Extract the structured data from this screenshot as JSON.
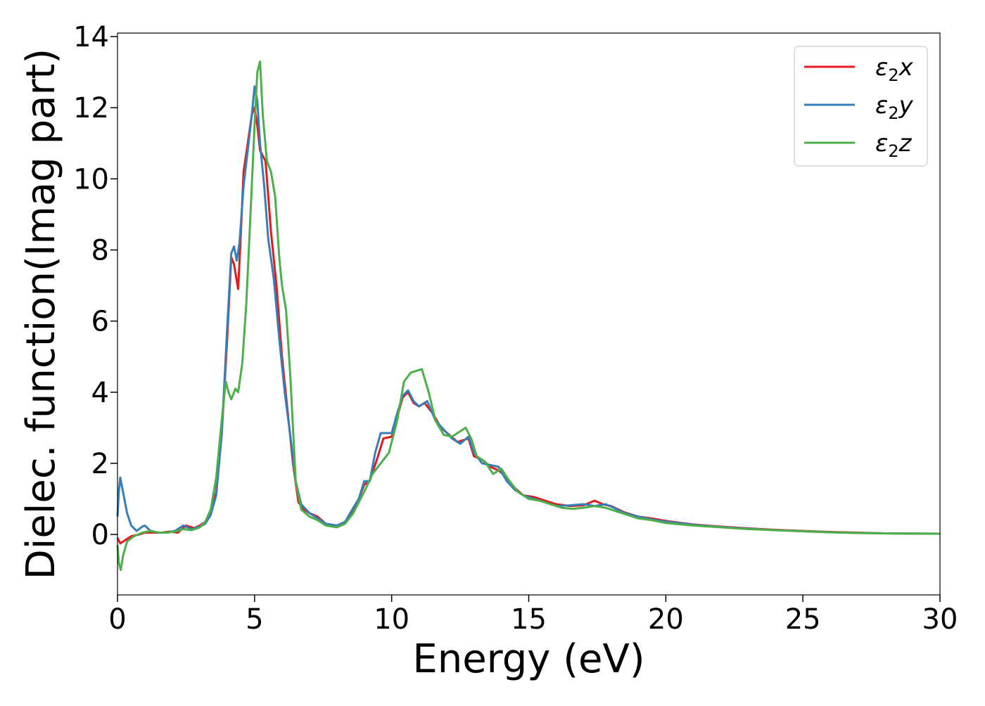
{
  "chart_data": {
    "type": "line",
    "title": "",
    "xlabel": "Energy (eV)",
    "ylabel": "Dielec. function(Imag part)",
    "xlim": [
      0,
      30
    ],
    "ylim": [
      -1.7,
      14.1
    ],
    "xticks": [
      0,
      5,
      10,
      15,
      20,
      25,
      30
    ],
    "yticks": [
      0,
      2,
      4,
      6,
      8,
      10,
      12,
      14
    ],
    "grid": false,
    "legend_position": "top-right",
    "series": [
      {
        "name": "ε₂x",
        "legend_base": "ε",
        "legend_sub": "2",
        "legend_suffix": "x",
        "color": "#e41a1c",
        "points": [
          [
            0,
            -0.1
          ],
          [
            0.1,
            -0.25
          ],
          [
            0.3,
            -0.15
          ],
          [
            0.5,
            -0.05
          ],
          [
            0.8,
            0.0
          ],
          [
            1.0,
            0.05
          ],
          [
            1.3,
            0.05
          ],
          [
            1.6,
            0.05
          ],
          [
            1.9,
            0.08
          ],
          [
            2.2,
            0.05
          ],
          [
            2.5,
            0.25
          ],
          [
            2.8,
            0.18
          ],
          [
            3.0,
            0.25
          ],
          [
            3.2,
            0.35
          ],
          [
            3.4,
            0.6
          ],
          [
            3.6,
            1.2
          ],
          [
            3.8,
            2.8
          ],
          [
            4.0,
            5.5
          ],
          [
            4.15,
            7.8
          ],
          [
            4.25,
            7.6
          ],
          [
            4.4,
            6.9
          ],
          [
            4.5,
            8.5
          ],
          [
            4.6,
            10.2
          ],
          [
            4.75,
            11.0
          ],
          [
            4.9,
            11.8
          ],
          [
            5.0,
            12.0
          ],
          [
            5.1,
            11.5
          ],
          [
            5.2,
            10.8
          ],
          [
            5.4,
            10.5
          ],
          [
            5.6,
            8.5
          ],
          [
            5.8,
            7.0
          ],
          [
            6.0,
            5.0
          ],
          [
            6.2,
            3.5
          ],
          [
            6.4,
            2.0
          ],
          [
            6.6,
            0.9
          ],
          [
            6.8,
            0.7
          ],
          [
            7.0,
            0.6
          ],
          [
            7.3,
            0.5
          ],
          [
            7.6,
            0.3
          ],
          [
            8.0,
            0.25
          ],
          [
            8.3,
            0.35
          ],
          [
            8.6,
            0.7
          ],
          [
            8.8,
            1.0
          ],
          [
            9.0,
            1.4
          ],
          [
            9.2,
            1.5
          ],
          [
            9.5,
            2.2
          ],
          [
            9.7,
            2.7
          ],
          [
            10.0,
            2.75
          ],
          [
            10.2,
            3.3
          ],
          [
            10.4,
            3.85
          ],
          [
            10.6,
            4.0
          ],
          [
            10.8,
            3.7
          ],
          [
            11.0,
            3.6
          ],
          [
            11.2,
            3.7
          ],
          [
            11.5,
            3.4
          ],
          [
            11.8,
            3.0
          ],
          [
            12.1,
            2.8
          ],
          [
            12.4,
            2.6
          ],
          [
            12.8,
            2.7
          ],
          [
            13.0,
            2.2
          ],
          [
            13.3,
            2.1
          ],
          [
            13.6,
            1.9
          ],
          [
            13.9,
            1.8
          ],
          [
            14.2,
            1.6
          ],
          [
            14.5,
            1.3
          ],
          [
            14.8,
            1.1
          ],
          [
            15.2,
            1.05
          ],
          [
            15.6,
            0.95
          ],
          [
            16.0,
            0.85
          ],
          [
            16.5,
            0.8
          ],
          [
            17.0,
            0.82
          ],
          [
            17.4,
            0.95
          ],
          [
            17.7,
            0.85
          ],
          [
            18.0,
            0.8
          ],
          [
            18.5,
            0.62
          ],
          [
            19.0,
            0.5
          ],
          [
            19.5,
            0.45
          ],
          [
            20.0,
            0.38
          ],
          [
            21.0,
            0.28
          ],
          [
            22.0,
            0.22
          ],
          [
            23.0,
            0.17
          ],
          [
            24.0,
            0.13
          ],
          [
            25.0,
            0.1
          ],
          [
            26.0,
            0.07
          ],
          [
            27.0,
            0.05
          ],
          [
            28.0,
            0.03
          ],
          [
            30.0,
            0.02
          ]
        ]
      },
      {
        "name": "ε₂y",
        "legend_base": "ε",
        "legend_sub": "2",
        "legend_suffix": "y",
        "color": "#377eb8",
        "points": [
          [
            0,
            0.5
          ],
          [
            0.05,
            1.2
          ],
          [
            0.1,
            1.6
          ],
          [
            0.2,
            1.2
          ],
          [
            0.35,
            0.6
          ],
          [
            0.5,
            0.25
          ],
          [
            0.7,
            0.1
          ],
          [
            0.9,
            0.22
          ],
          [
            1.0,
            0.25
          ],
          [
            1.2,
            0.1
          ],
          [
            1.5,
            0.05
          ],
          [
            1.8,
            0.05
          ],
          [
            2.1,
            0.1
          ],
          [
            2.4,
            0.25
          ],
          [
            2.7,
            0.15
          ],
          [
            3.0,
            0.22
          ],
          [
            3.2,
            0.3
          ],
          [
            3.4,
            0.55
          ],
          [
            3.6,
            1.1
          ],
          [
            3.8,
            2.8
          ],
          [
            4.0,
            5.8
          ],
          [
            4.15,
            7.9
          ],
          [
            4.25,
            8.1
          ],
          [
            4.35,
            7.7
          ],
          [
            4.45,
            8.2
          ],
          [
            4.6,
            9.8
          ],
          [
            4.75,
            10.8
          ],
          [
            4.9,
            11.8
          ],
          [
            5.0,
            12.6
          ],
          [
            5.1,
            12.2
          ],
          [
            5.2,
            11.0
          ],
          [
            5.35,
            9.8
          ],
          [
            5.5,
            8.3
          ],
          [
            5.7,
            7.2
          ],
          [
            5.9,
            5.5
          ],
          [
            6.1,
            4.0
          ],
          [
            6.3,
            2.8
          ],
          [
            6.5,
            1.5
          ],
          [
            6.7,
            0.85
          ],
          [
            7.0,
            0.6
          ],
          [
            7.3,
            0.45
          ],
          [
            7.6,
            0.3
          ],
          [
            8.0,
            0.25
          ],
          [
            8.3,
            0.35
          ],
          [
            8.6,
            0.75
          ],
          [
            8.8,
            1.0
          ],
          [
            9.0,
            1.5
          ],
          [
            9.2,
            1.5
          ],
          [
            9.4,
            2.3
          ],
          [
            9.6,
            2.85
          ],
          [
            10.0,
            2.85
          ],
          [
            10.2,
            3.4
          ],
          [
            10.4,
            3.9
          ],
          [
            10.6,
            4.05
          ],
          [
            10.8,
            3.75
          ],
          [
            11.0,
            3.6
          ],
          [
            11.3,
            3.75
          ],
          [
            11.6,
            3.2
          ],
          [
            11.9,
            2.95
          ],
          [
            12.2,
            2.7
          ],
          [
            12.5,
            2.55
          ],
          [
            12.8,
            2.75
          ],
          [
            13.0,
            2.3
          ],
          [
            13.3,
            2.0
          ],
          [
            13.6,
            1.95
          ],
          [
            13.9,
            1.9
          ],
          [
            14.2,
            1.5
          ],
          [
            14.5,
            1.25
          ],
          [
            14.8,
            1.1
          ],
          [
            15.2,
            1.0
          ],
          [
            15.6,
            0.9
          ],
          [
            16.0,
            0.8
          ],
          [
            16.5,
            0.82
          ],
          [
            17.0,
            0.85
          ],
          [
            17.4,
            0.8
          ],
          [
            17.8,
            0.85
          ],
          [
            18.1,
            0.75
          ],
          [
            18.5,
            0.6
          ],
          [
            19.0,
            0.5
          ],
          [
            19.5,
            0.42
          ],
          [
            20.0,
            0.36
          ],
          [
            21.0,
            0.27
          ],
          [
            22.0,
            0.21
          ],
          [
            23.0,
            0.16
          ],
          [
            24.0,
            0.12
          ],
          [
            25.0,
            0.09
          ],
          [
            26.0,
            0.06
          ],
          [
            27.0,
            0.04
          ],
          [
            28.0,
            0.03
          ],
          [
            30.0,
            0.02
          ]
        ]
      },
      {
        "name": "ε₂z",
        "legend_base": "ε",
        "legend_sub": "2",
        "legend_suffix": "z",
        "color": "#4daf4a",
        "points": [
          [
            0,
            -0.3
          ],
          [
            0.05,
            -0.8
          ],
          [
            0.12,
            -1.0
          ],
          [
            0.2,
            -0.6
          ],
          [
            0.35,
            -0.2
          ],
          [
            0.6,
            -0.05
          ],
          [
            0.9,
            0.05
          ],
          [
            1.2,
            0.1
          ],
          [
            1.5,
            0.05
          ],
          [
            1.8,
            0.05
          ],
          [
            2.1,
            0.08
          ],
          [
            2.4,
            0.15
          ],
          [
            2.7,
            0.12
          ],
          [
            3.0,
            0.2
          ],
          [
            3.2,
            0.35
          ],
          [
            3.4,
            0.7
          ],
          [
            3.6,
            1.6
          ],
          [
            3.8,
            3.2
          ],
          [
            3.95,
            4.3
          ],
          [
            4.05,
            4.0
          ],
          [
            4.15,
            3.8
          ],
          [
            4.3,
            4.1
          ],
          [
            4.4,
            4.0
          ],
          [
            4.55,
            4.8
          ],
          [
            4.7,
            6.5
          ],
          [
            4.85,
            9.0
          ],
          [
            5.0,
            11.5
          ],
          [
            5.1,
            13.0
          ],
          [
            5.2,
            13.3
          ],
          [
            5.3,
            11.8
          ],
          [
            5.45,
            10.5
          ],
          [
            5.6,
            10.2
          ],
          [
            5.75,
            9.5
          ],
          [
            5.9,
            7.8
          ],
          [
            6.0,
            7.0
          ],
          [
            6.15,
            6.3
          ],
          [
            6.3,
            4.5
          ],
          [
            6.5,
            1.5
          ],
          [
            6.7,
            0.7
          ],
          [
            7.0,
            0.5
          ],
          [
            7.3,
            0.4
          ],
          [
            7.6,
            0.25
          ],
          [
            8.0,
            0.2
          ],
          [
            8.3,
            0.3
          ],
          [
            8.6,
            0.6
          ],
          [
            9.0,
            1.2
          ],
          [
            9.3,
            1.7
          ],
          [
            9.6,
            2.0
          ],
          [
            9.9,
            2.3
          ],
          [
            10.2,
            3.2
          ],
          [
            10.45,
            4.3
          ],
          [
            10.7,
            4.55
          ],
          [
            10.9,
            4.6
          ],
          [
            11.1,
            4.65
          ],
          [
            11.35,
            4.0
          ],
          [
            11.6,
            3.2
          ],
          [
            11.9,
            2.8
          ],
          [
            12.2,
            2.75
          ],
          [
            12.5,
            2.9
          ],
          [
            12.7,
            3.0
          ],
          [
            12.9,
            2.7
          ],
          [
            13.1,
            2.2
          ],
          [
            13.4,
            2.05
          ],
          [
            13.7,
            1.7
          ],
          [
            14.0,
            1.85
          ],
          [
            14.3,
            1.5
          ],
          [
            14.6,
            1.2
          ],
          [
            15.0,
            1.0
          ],
          [
            15.4,
            0.95
          ],
          [
            15.8,
            0.85
          ],
          [
            16.2,
            0.75
          ],
          [
            16.6,
            0.72
          ],
          [
            17.0,
            0.75
          ],
          [
            17.4,
            0.8
          ],
          [
            17.8,
            0.75
          ],
          [
            18.2,
            0.65
          ],
          [
            18.6,
            0.55
          ],
          [
            19.0,
            0.45
          ],
          [
            19.5,
            0.4
          ],
          [
            20.0,
            0.32
          ],
          [
            21.0,
            0.25
          ],
          [
            22.0,
            0.2
          ],
          [
            23.0,
            0.15
          ],
          [
            24.0,
            0.12
          ],
          [
            25.0,
            0.09
          ],
          [
            26.0,
            0.06
          ],
          [
            27.0,
            0.04
          ],
          [
            28.0,
            0.03
          ],
          [
            30.0,
            0.02
          ]
        ]
      }
    ]
  }
}
